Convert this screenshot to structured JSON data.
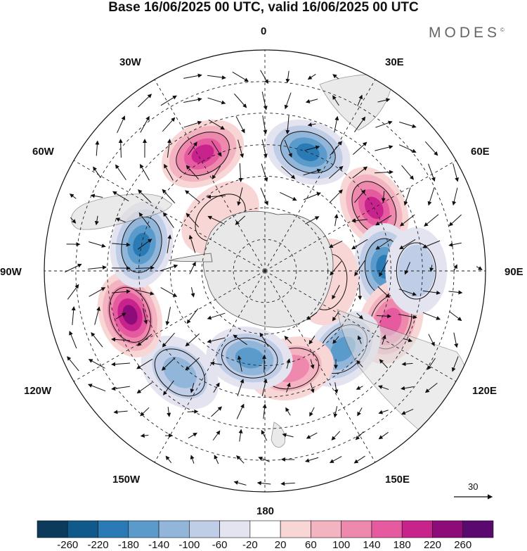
{
  "title": "Base 16/06/2025 00 UTC, valid 16/06/2025 00 UTC",
  "brand": {
    "name": "MODES",
    "mark": "©"
  },
  "map": {
    "projection": "south polar stereographic",
    "longitude_labels": {
      "0": "0",
      "30E": "30E",
      "60E": "60E",
      "90E": "90E",
      "120E": "120E",
      "150E": "150E",
      "180": "180",
      "150W": "150W",
      "120W": "120W",
      "90W": "90W",
      "60W": "60W",
      "30W": "30W"
    },
    "reference_vector": {
      "value": "30"
    }
  },
  "colorbar": {
    "ticks": [
      "-260",
      "-220",
      "-180",
      "-140",
      "-100",
      "-60",
      "-20",
      "20",
      "60",
      "100",
      "140",
      "180",
      "220",
      "260"
    ],
    "colors": [
      "#0b3a5c",
      "#0f5a8a",
      "#2a7ab5",
      "#5b9bcc",
      "#92b6da",
      "#c0cde6",
      "#e4e4f0",
      "#ffffff",
      "#f9d6d6",
      "#f3b3c0",
      "#ee89ad",
      "#e65aa0",
      "#c8228c",
      "#8e0c7a",
      "#5a0a6e"
    ]
  },
  "anomalies": [
    {
      "lat": -48,
      "lon": -28,
      "value": 200
    },
    {
      "lat": -50,
      "lon": 20,
      "value": -190
    },
    {
      "lat": -50,
      "lon": 60,
      "value": 210
    },
    {
      "lat": -52,
      "lon": 88,
      "value": -180
    },
    {
      "lat": -47,
      "lon": 112,
      "value": 160
    },
    {
      "lat": -55,
      "lon": 135,
      "value": -160
    },
    {
      "lat": -58,
      "lon": 165,
      "value": 130
    },
    {
      "lat": -62,
      "lon": -170,
      "value": -140
    },
    {
      "lat": -48,
      "lon": -140,
      "value": -110
    },
    {
      "lat": -45,
      "lon": -108,
      "value": 220
    },
    {
      "lat": -50,
      "lon": -78,
      "value": -190
    },
    {
      "lat": -42,
      "lon": 90,
      "value": -90
    },
    {
      "lat": -70,
      "lon": 100,
      "value": 40
    },
    {
      "lat": -68,
      "lon": -40,
      "value": 30
    }
  ]
}
